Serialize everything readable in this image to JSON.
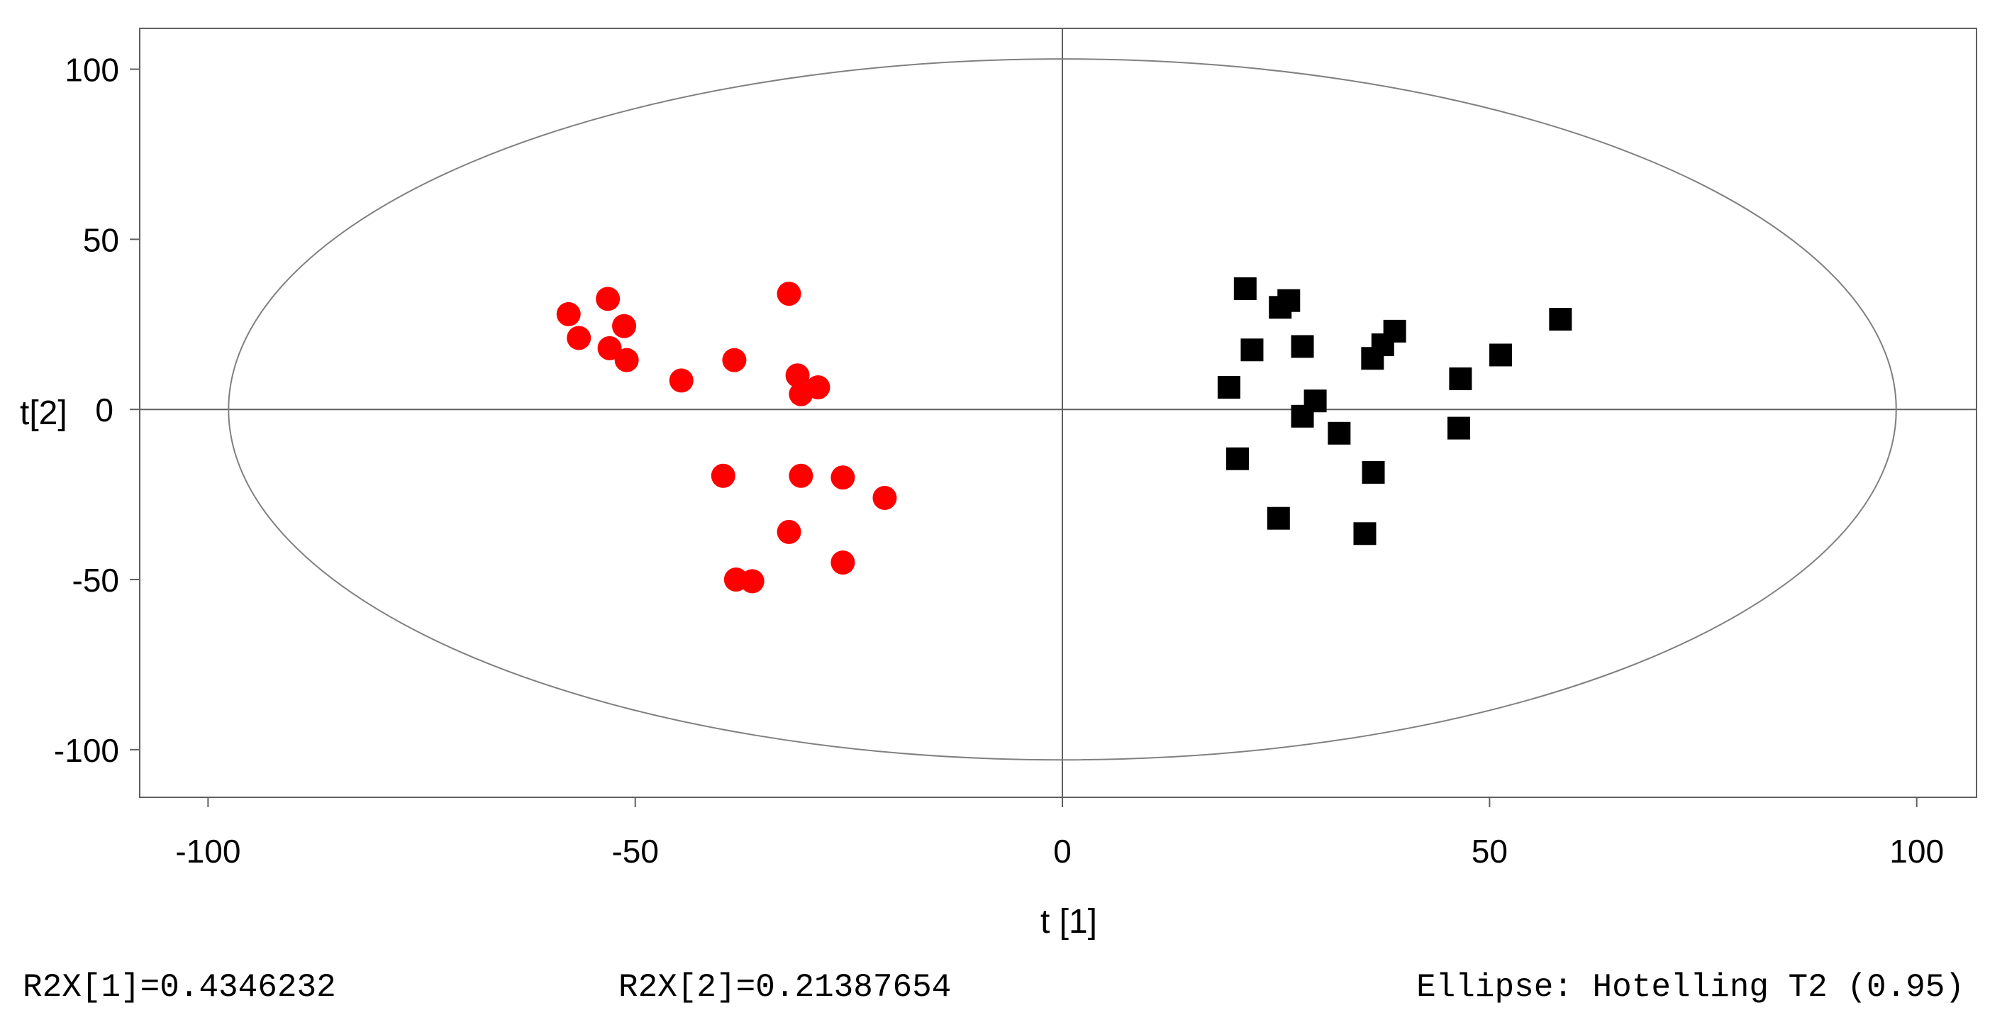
{
  "chart_data": {
    "type": "scatter",
    "title": "",
    "xlabel": "t [1]",
    "ylabel": "t[2]",
    "xlim": [
      -108,
      107
    ],
    "ylim": [
      -114,
      112
    ],
    "xticks": [
      -100,
      -50,
      0,
      50,
      100
    ],
    "yticks": [
      100,
      50,
      0,
      -50,
      -100
    ],
    "grid": false,
    "ellipse": {
      "cx": 0,
      "cy": 0,
      "rx": 97.6,
      "ry": 103
    },
    "series": [
      {
        "marker": "circle",
        "color": "#ff0000",
        "x": [
          -57.8,
          -56.6,
          -53.2,
          -53.0,
          -51.3,
          -51.0,
          -44.6,
          -32.0,
          -38.4,
          -31.0,
          -30.6,
          -28.6,
          -39.7,
          -30.6,
          -25.7,
          -20.8,
          -32.0,
          -38.2,
          -36.3,
          -25.7
        ],
        "y": [
          28.0,
          21.0,
          32.5,
          18.0,
          24.5,
          14.5,
          8.5,
          34.0,
          14.5,
          10.0,
          4.5,
          6.5,
          -19.5,
          -19.5,
          -20.0,
          -26.0,
          -36.0,
          -50.0,
          -50.5,
          -45.0
        ]
      },
      {
        "marker": "square",
        "color": "#000000",
        "x": [
          21.4,
          25.5,
          26.5,
          22.2,
          28.1,
          19.5,
          29.6,
          28.1,
          38.9,
          37.5,
          36.3,
          51.3,
          58.3,
          46.6,
          32.4,
          46.4,
          20.5,
          36.4,
          25.3,
          35.4
        ],
        "y": [
          35.5,
          30.0,
          32.0,
          17.5,
          18.5,
          6.5,
          2.5,
          -2.0,
          23.0,
          19.0,
          15.0,
          16.0,
          26.5,
          9.0,
          -7.0,
          -5.5,
          -14.5,
          -18.5,
          -32.0,
          -36.5
        ]
      }
    ]
  },
  "footer": {
    "r2x1": "R2X[1]=0.4346232",
    "r2x2": "R2X[2]=0.21387654",
    "ellipse": "Ellipse: Hotelling T2 (0.95)"
  }
}
